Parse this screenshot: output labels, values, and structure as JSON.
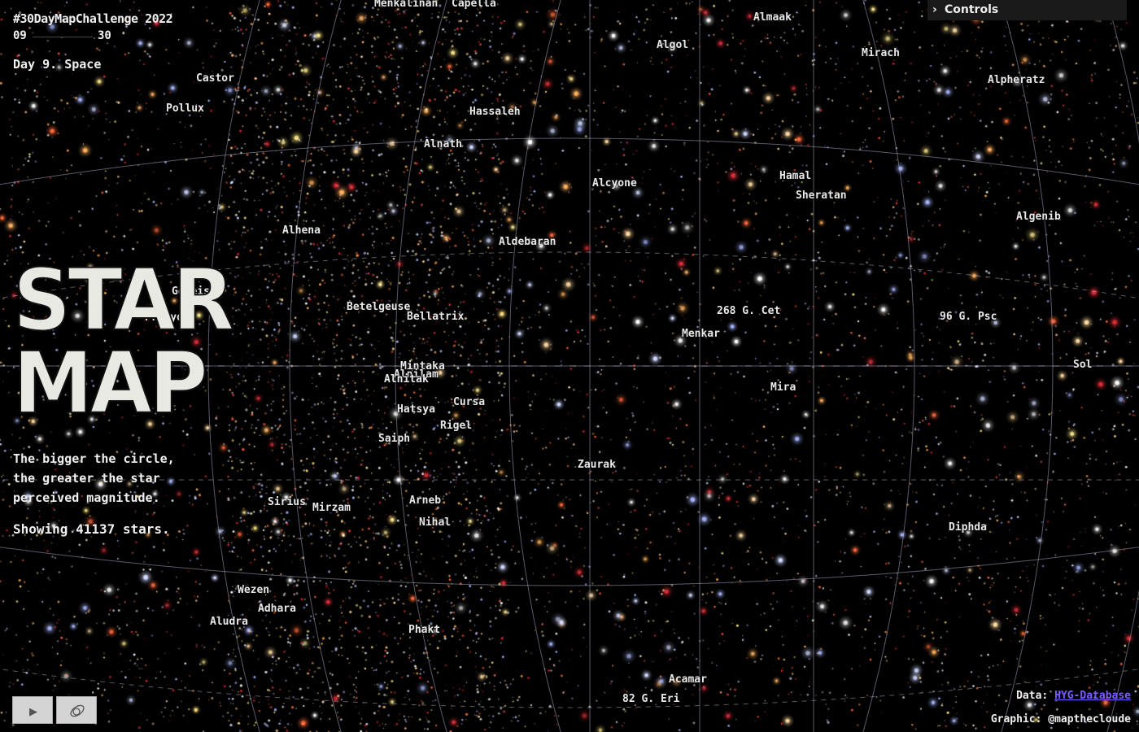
{
  "header": {
    "challenge": "#30DayMapChallenge 2022",
    "range_min": "09",
    "range_max": "30",
    "day": "Day 9. Space"
  },
  "title": {
    "line1": "STAR",
    "line2": "MAP"
  },
  "description": {
    "line1": "The bigger the circle,",
    "line2": "the greater the star",
    "line3": "perceived magnitude."
  },
  "count_text": "Showing 41137 stars.",
  "controls": {
    "label": "Controls",
    "toggle_glyph": "›"
  },
  "credits": {
    "data_label": "Data:",
    "data_link": "HYG-Database",
    "graphic": "Graphic: @mapthecloude"
  },
  "buttons": {
    "play_glyph": "▶"
  },
  "star_labels": [
    "Menkalinan",
    "Capella",
    "Almaak",
    "Algol",
    "Mirach",
    "Castor",
    "Alpheratz",
    "Pollux",
    "Hassaleh",
    "Alnath",
    "Alcyone",
    "Hamal",
    "Sheratan",
    "Algenib",
    "Alhena",
    "Aldebaran",
    "Gomeisa",
    "Procyon",
    "268 G. Cet",
    "Betelgeuse",
    "Bellatrix",
    "96 G. Psc",
    "Menkar",
    "Sol",
    "Mintaka",
    "Alnilam",
    "Alnitak",
    "Mira",
    "Cursa",
    "Hatsya",
    "Rigel",
    "Saiph",
    "Zaurak",
    "Sirius",
    "Mirzam",
    "Arneb",
    "Nihal",
    "Diphda",
    "Wezen",
    "Adhara",
    "Aludra",
    "Phakt",
    "Acamar",
    "82 G. Eri"
  ],
  "colors": {
    "background": "#000000",
    "graticule": "#c8c8e6",
    "link": "#7a5cff",
    "button": "#d4d4d4"
  }
}
